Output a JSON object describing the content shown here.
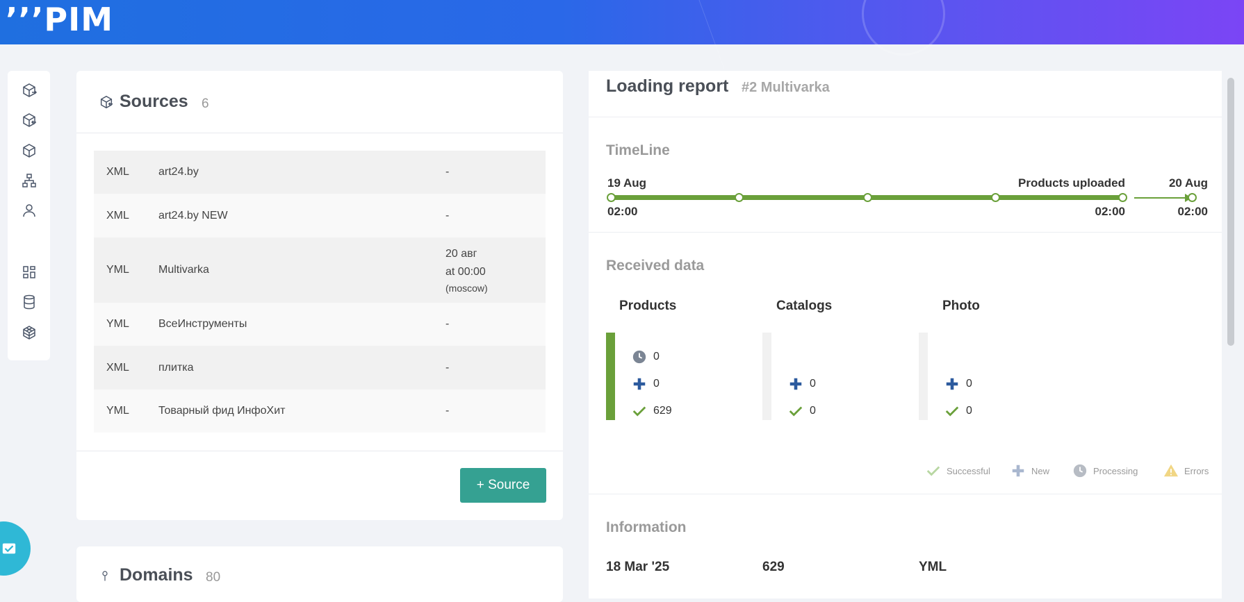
{
  "header": {
    "logo": "’’’PIM"
  },
  "sidenav": {
    "items": [
      {
        "icon": "box-export-icon"
      },
      {
        "icon": "box-import-icon"
      },
      {
        "icon": "box-icon"
      },
      {
        "icon": "hierarchy-icon"
      },
      {
        "icon": "user-icon"
      },
      {
        "icon": "dashboard-icon"
      },
      {
        "icon": "database-icon"
      },
      {
        "icon": "cube-grid-icon"
      }
    ]
  },
  "sources": {
    "title": "Sources",
    "count": "6",
    "rows": [
      {
        "type": "XML",
        "name": "art24.by",
        "next": "-"
      },
      {
        "type": "XML",
        "name": "art24.by NEW",
        "next": "-"
      },
      {
        "type": "YML",
        "name": "Multivarka",
        "next_line1": "20 авг",
        "next_line2": "at 00:00",
        "next_tz": "(moscow)"
      },
      {
        "type": "YML",
        "name": "ВсеИнструменты",
        "next": "-"
      },
      {
        "type": "XML",
        "name": "плитка",
        "next": "-"
      },
      {
        "type": "YML",
        "name": "Товарный фид ИнфоХит",
        "next": "-"
      }
    ],
    "add_button": "+ Source"
  },
  "domains": {
    "title": "Domains",
    "count": "80"
  },
  "report": {
    "title": "Loading report",
    "subtitle": "#2 Multivarka",
    "timeline": {
      "title": "TimeLine",
      "start_date": "19 Aug",
      "start_time": "02:00",
      "stage_label": "Products uploaded",
      "stage_time": "02:00",
      "end_date": "20 Aug",
      "end_time": "02:00"
    },
    "received": {
      "title": "Received data",
      "products": {
        "title": "Products",
        "processing": "0",
        "new": "0",
        "successful": "629"
      },
      "catalogs": {
        "title": "Catalogs",
        "new": "0",
        "successful": "0"
      },
      "photo": {
        "title": "Photo",
        "new": "0",
        "successful": "0"
      }
    },
    "legend": {
      "successful": "Successful",
      "new": "New",
      "processing": "Processing",
      "errors": "Errors"
    },
    "information": {
      "title": "Information",
      "date": "18 Mar '25",
      "count": "629",
      "format": "YML"
    }
  },
  "colors": {
    "accent_green": "#6aa03a",
    "button_teal": "#35a192",
    "new_blue": "#2c5a9e",
    "processing_gray": "#7b8594"
  }
}
